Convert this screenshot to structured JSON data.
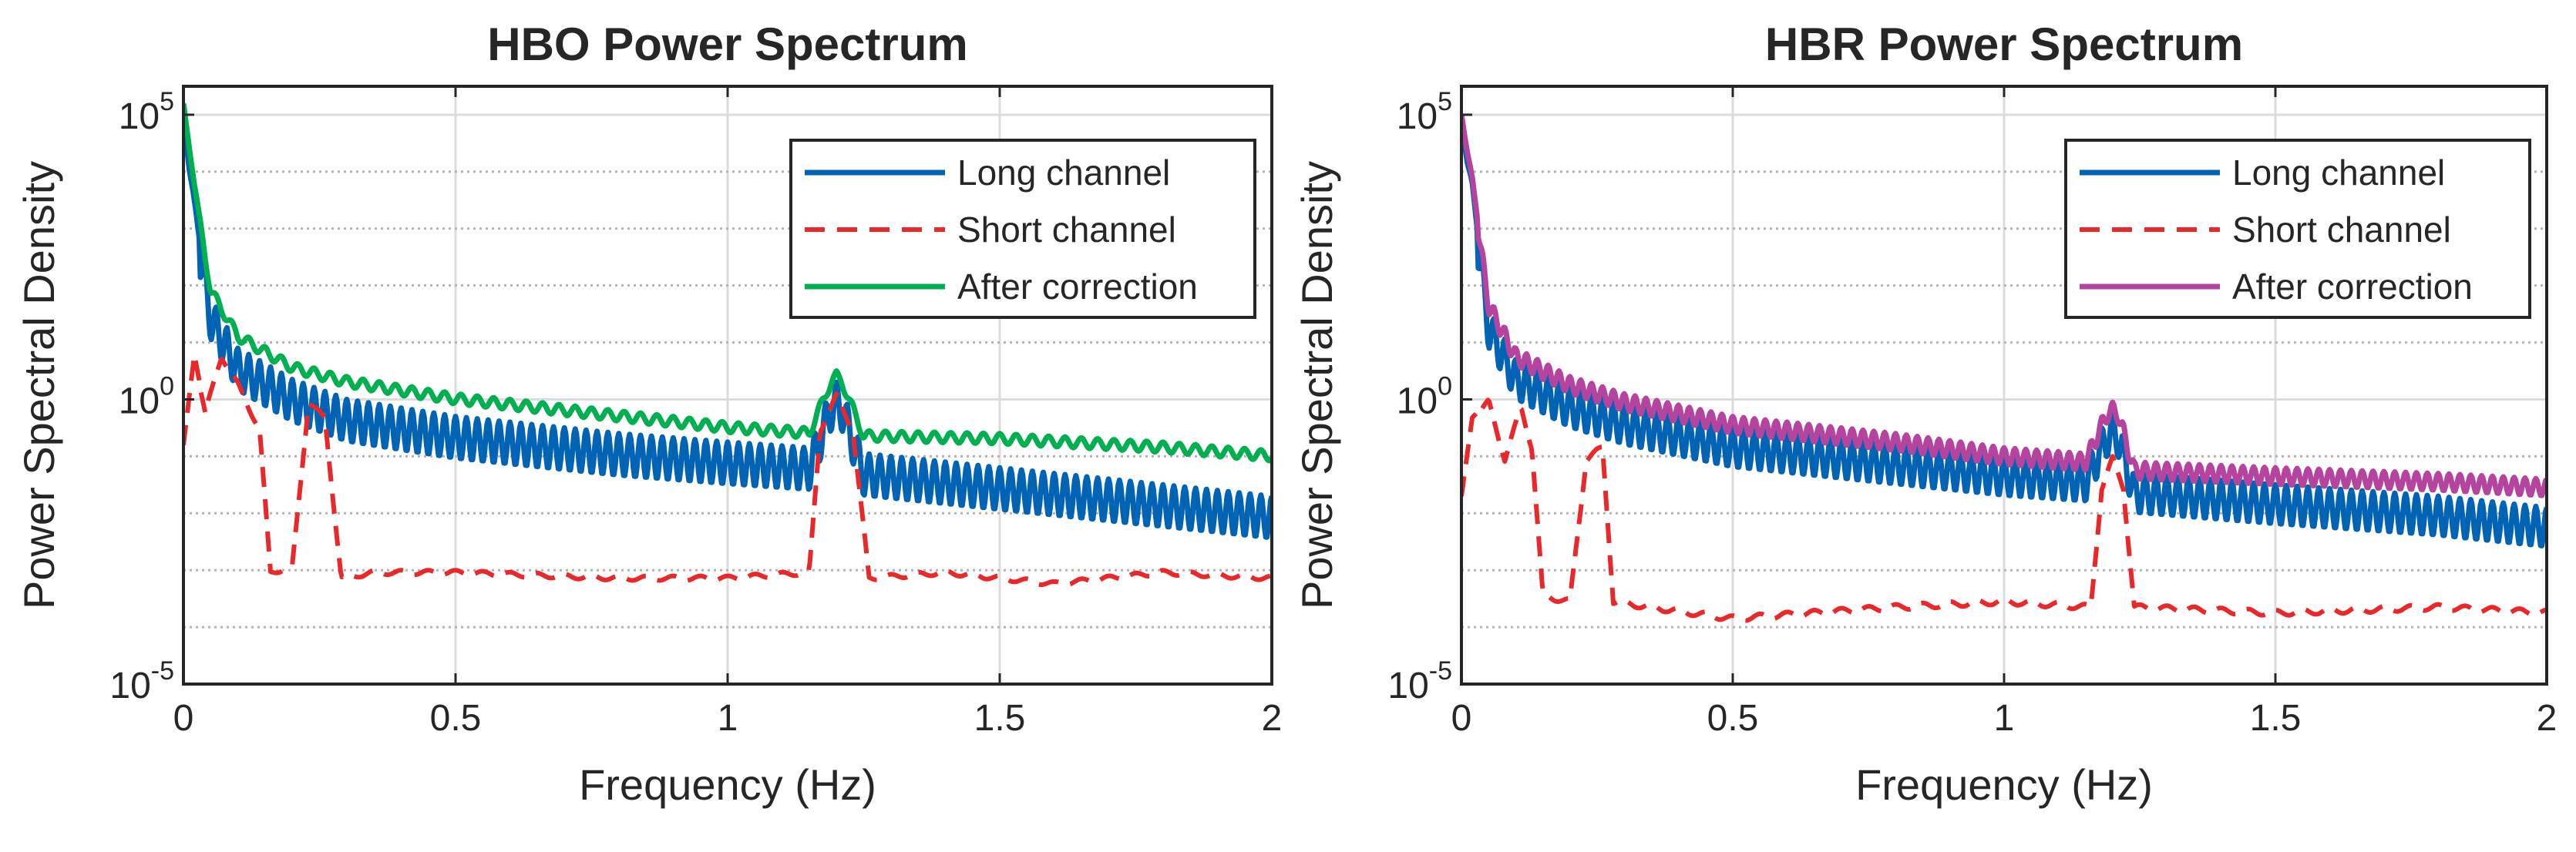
{
  "chart_data": [
    {
      "id": "hbo",
      "type": "line",
      "title": "HBO Power Spectrum",
      "xlabel": "Frequency (Hz)",
      "ylabel": "Power Spectral Density",
      "xlim": [
        0,
        2
      ],
      "ylim_log10": [
        -5,
        5.5
      ],
      "xticks": [
        0,
        0.5,
        1,
        1.5,
        2
      ],
      "xtick_labels": [
        "0",
        "0.5",
        "1",
        "1.5",
        "2"
      ],
      "yticks_log10": [
        -5,
        0,
        5
      ],
      "ytick_labels": [
        {
          "base": "10",
          "exp": "-5"
        },
        {
          "base": "10",
          "exp": "0"
        },
        {
          "base": "10",
          "exp": "5"
        }
      ],
      "yscale": "log",
      "grid": true,
      "legend_position": "top-right",
      "series": [
        {
          "name": "Long channel",
          "color": "#0063b3",
          "style": "solid",
          "trend_log10": [
            [
              0,
              5.0
            ],
            [
              0.02,
              3.5
            ],
            [
              0.05,
              1.8
            ],
            [
              0.1,
              0.9
            ],
            [
              0.2,
              0.35
            ],
            [
              0.3,
              0.0
            ],
            [
              0.5,
              -0.3
            ],
            [
              0.8,
              -0.6
            ],
            [
              1.0,
              -0.75
            ],
            [
              1.15,
              -0.85
            ],
            [
              1.19,
              0.2
            ],
            [
              1.2,
              0.3
            ],
            [
              1.21,
              0.2
            ],
            [
              1.25,
              -0.95
            ],
            [
              1.5,
              -1.2
            ],
            [
              1.8,
              -1.5
            ],
            [
              2.0,
              -1.7
            ]
          ],
          "ripple_log10": 0.75,
          "ripple_period_hz": 0.02
        },
        {
          "name": "Short channel",
          "color": "#e8282b",
          "style": "dashed",
          "trend_log10": [
            [
              0,
              -0.8
            ],
            [
              0.02,
              0.8
            ],
            [
              0.04,
              -0.2
            ],
            [
              0.07,
              0.8
            ],
            [
              0.1,
              0.3
            ],
            [
              0.14,
              -0.5
            ],
            [
              0.16,
              -3.0
            ],
            [
              0.2,
              -2.9
            ],
            [
              0.23,
              0.0
            ],
            [
              0.26,
              -0.3
            ],
            [
              0.29,
              -3.1
            ],
            [
              0.35,
              -3.0
            ],
            [
              0.5,
              -3.0
            ],
            [
              0.8,
              -3.1
            ],
            [
              1.0,
              -3.1
            ],
            [
              1.15,
              -3.0
            ],
            [
              1.17,
              -0.5
            ],
            [
              1.2,
              0.1
            ],
            [
              1.23,
              -0.5
            ],
            [
              1.26,
              -3.1
            ],
            [
              1.4,
              -3.0
            ],
            [
              1.6,
              -3.2
            ],
            [
              1.8,
              -3.0
            ],
            [
              2.0,
              -3.1
            ]
          ],
          "ripple_log10": 0.08,
          "ripple_period_hz": 0.05
        },
        {
          "name": "After correction",
          "color": "#00b050",
          "style": "solid",
          "trend_log10": [
            [
              0,
              5.2
            ],
            [
              0.02,
              3.8
            ],
            [
              0.05,
              2.0
            ],
            [
              0.1,
              1.2
            ],
            [
              0.2,
              0.65
            ],
            [
              0.3,
              0.4
            ],
            [
              0.5,
              0.1
            ],
            [
              0.8,
              -0.2
            ],
            [
              1.0,
              -0.4
            ],
            [
              1.15,
              -0.5
            ],
            [
              1.19,
              0.4
            ],
            [
              1.2,
              0.5
            ],
            [
              1.21,
              0.4
            ],
            [
              1.25,
              -0.55
            ],
            [
              1.5,
              -0.6
            ],
            [
              1.8,
              -0.75
            ],
            [
              2.0,
              -0.9
            ]
          ],
          "ripple_log10": 0.18,
          "ripple_period_hz": 0.03
        }
      ]
    },
    {
      "id": "hbr",
      "type": "line",
      "title": "HBR Power Spectrum",
      "xlabel": "Frequency (Hz)",
      "ylabel": "Power Spectral Density",
      "xlim": [
        0,
        2
      ],
      "ylim_log10": [
        -5,
        5.5
      ],
      "xticks": [
        0,
        0.5,
        1,
        1.5,
        2
      ],
      "xtick_labels": [
        "0",
        "0.5",
        "1",
        "1.5",
        "2"
      ],
      "yticks_log10": [
        -5,
        0,
        5
      ],
      "ytick_labels": [
        {
          "base": "10",
          "exp": "-5"
        },
        {
          "base": "10",
          "exp": "0"
        },
        {
          "base": "10",
          "exp": "5"
        }
      ],
      "yscale": "log",
      "grid": true,
      "legend_position": "top-right",
      "series": [
        {
          "name": "Long channel",
          "color": "#0063b3",
          "style": "solid",
          "trend_log10": [
            [
              0,
              4.9
            ],
            [
              0.02,
              3.8
            ],
            [
              0.05,
              1.6
            ],
            [
              0.1,
              0.7
            ],
            [
              0.2,
              0.2
            ],
            [
              0.3,
              -0.1
            ],
            [
              0.5,
              -0.5
            ],
            [
              0.8,
              -0.8
            ],
            [
              1.0,
              -1.0
            ],
            [
              1.15,
              -1.1
            ],
            [
              1.19,
              -0.3
            ],
            [
              1.2,
              -0.25
            ],
            [
              1.21,
              -0.3
            ],
            [
              1.24,
              -1.3
            ],
            [
              1.5,
              -1.5
            ],
            [
              1.8,
              -1.7
            ],
            [
              2.0,
              -1.9
            ]
          ],
          "ripple_log10": 0.7,
          "ripple_period_hz": 0.02
        },
        {
          "name": "Short channel",
          "color": "#e8282b",
          "style": "dashed",
          "trend_log10": [
            [
              0,
              -1.7
            ],
            [
              0.02,
              -0.3
            ],
            [
              0.05,
              0.0
            ],
            [
              0.08,
              -1.0
            ],
            [
              0.11,
              -0.1
            ],
            [
              0.13,
              -0.8
            ],
            [
              0.15,
              -3.4
            ],
            [
              0.2,
              -3.5
            ],
            [
              0.23,
              -1.0
            ],
            [
              0.26,
              -0.8
            ],
            [
              0.28,
              -3.5
            ],
            [
              0.35,
              -3.6
            ],
            [
              0.5,
              -3.8
            ],
            [
              0.8,
              -3.6
            ],
            [
              1.0,
              -3.5
            ],
            [
              1.16,
              -3.6
            ],
            [
              1.18,
              -1.5
            ],
            [
              1.2,
              -1.0
            ],
            [
              1.22,
              -1.5
            ],
            [
              1.24,
              -3.6
            ],
            [
              1.5,
              -3.7
            ],
            [
              1.8,
              -3.6
            ],
            [
              2.0,
              -3.7
            ]
          ],
          "ripple_log10": 0.1,
          "ripple_period_hz": 0.05
        },
        {
          "name": "After correction",
          "color": "#b5449e",
          "style": "solid",
          "trend_log10": [
            [
              0,
              5.0
            ],
            [
              0.02,
              3.9
            ],
            [
              0.05,
              1.8
            ],
            [
              0.1,
              0.9
            ],
            [
              0.2,
              0.4
            ],
            [
              0.3,
              0.1
            ],
            [
              0.5,
              -0.3
            ],
            [
              0.8,
              -0.6
            ],
            [
              1.0,
              -0.85
            ],
            [
              1.15,
              -0.95
            ],
            [
              1.19,
              -0.1
            ],
            [
              1.2,
              -0.05
            ],
            [
              1.21,
              -0.1
            ],
            [
              1.24,
              -1.1
            ],
            [
              1.5,
              -1.2
            ],
            [
              1.8,
              -1.3
            ],
            [
              2.0,
              -1.4
            ]
          ],
          "ripple_log10": 0.3,
          "ripple_period_hz": 0.02
        }
      ]
    }
  ]
}
